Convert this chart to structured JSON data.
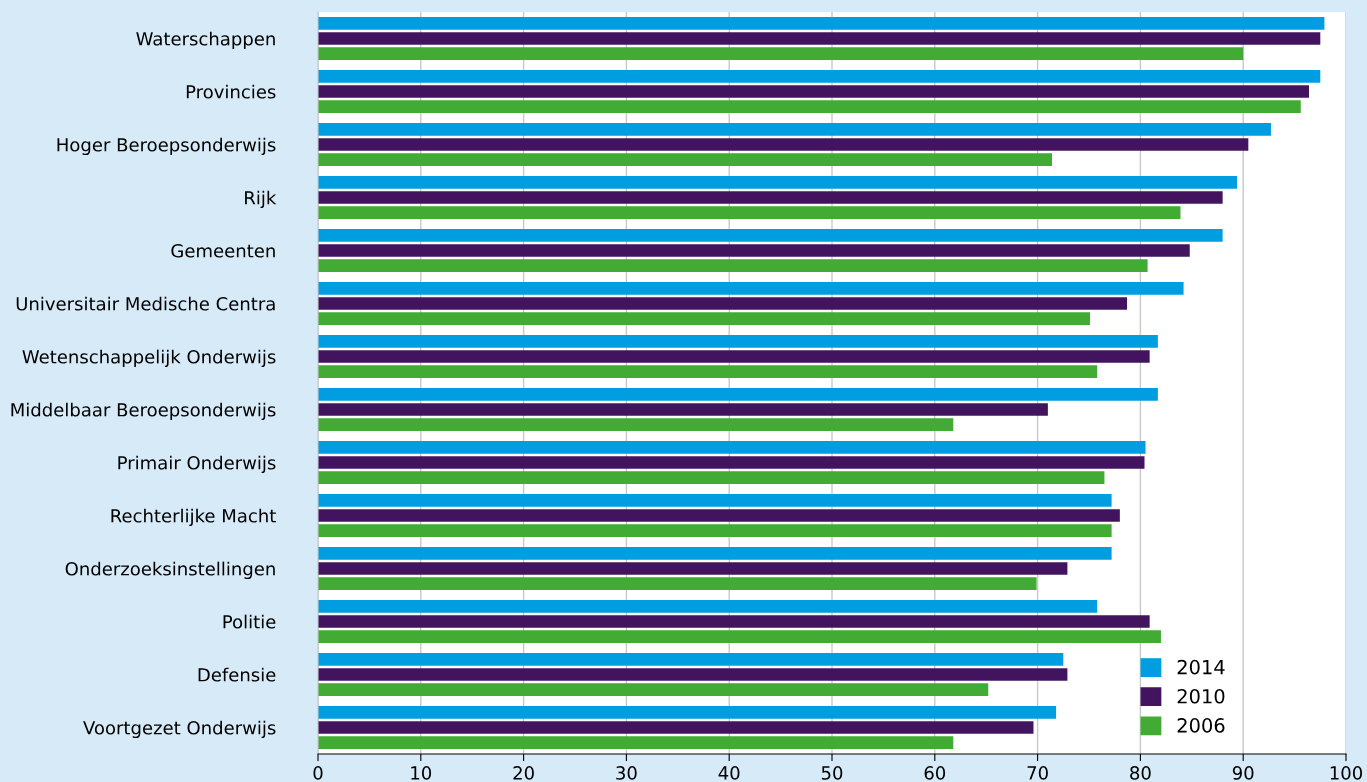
{
  "chart_data": {
    "type": "bar",
    "orientation": "horizontal",
    "categories": [
      "Waterschappen",
      "Provincies",
      "Hoger Beroepsonderwijs",
      "Rijk",
      "Gemeenten",
      "Universitair Medische Centra",
      "Wetenschappelijk Onderwijs",
      "Middelbaar Beroepsonderwijs",
      "Primair Onderwijs",
      "Rechterlijke Macht",
      "Onderzoeksinstellingen",
      "Politie",
      "Defensie",
      "Voortgezet Onderwijs"
    ],
    "series": [
      {
        "name": "2014",
        "color": "#009ee0",
        "values": [
          97.9,
          97.5,
          92.7,
          89.4,
          88.0,
          84.2,
          81.7,
          81.7,
          80.5,
          77.2,
          77.2,
          75.8,
          72.5,
          71.8
        ]
      },
      {
        "name": "2010",
        "color": "#42145f",
        "values": [
          97.5,
          96.4,
          90.5,
          88.0,
          84.8,
          78.7,
          80.9,
          71.0,
          80.4,
          78.0,
          72.9,
          80.9,
          72.9,
          69.6
        ]
      },
      {
        "name": "2006",
        "color": "#42ab34",
        "values": [
          90.0,
          95.6,
          71.4,
          83.9,
          80.7,
          75.1,
          75.8,
          61.8,
          76.5,
          77.2,
          69.9,
          82.0,
          65.2,
          61.8
        ]
      }
    ],
    "xlim": [
      0,
      100
    ],
    "xticks": [
      0,
      10,
      20,
      30,
      40,
      50,
      60,
      70,
      80,
      90,
      100
    ],
    "grid": "x",
    "legend": "bottom right"
  }
}
